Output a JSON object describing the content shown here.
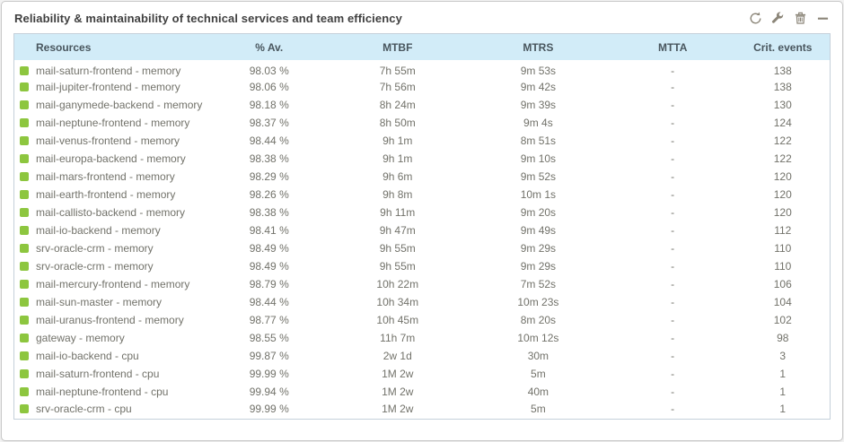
{
  "widget": {
    "title": "Reliability & maintainability of technical services and team efficiency",
    "toolbar": {
      "refresh_icon": "refresh-icon",
      "settings_icon": "wrench-icon",
      "delete_icon": "trash-icon",
      "collapse_icon": "minimize-icon"
    }
  },
  "colors": {
    "status_ok": "#8dc63f",
    "header_bg": "#d2ecf8",
    "header_text": "#49565e",
    "row_text": "#72726a",
    "table_border": "#c5d0da",
    "icon_gray": "#8b8578"
  },
  "table": {
    "columns": [
      "Resources",
      "% Av.",
      "MTBF",
      "MTRS",
      "MTTA",
      "Crit. events"
    ],
    "rows": [
      {
        "status": "ok",
        "resource": "mail-saturn-frontend - memory",
        "availability": "98.03 %",
        "mtbf": "7h 55m",
        "mtrs": "9m 53s",
        "mtta": "-",
        "crit_events": "138"
      },
      {
        "status": "ok",
        "resource": "mail-jupiter-frontend - memory",
        "availability": "98.06 %",
        "mtbf": "7h 56m",
        "mtrs": "9m 42s",
        "mtta": "-",
        "crit_events": "138"
      },
      {
        "status": "ok",
        "resource": "mail-ganymede-backend - memory",
        "availability": "98.18 %",
        "mtbf": "8h 24m",
        "mtrs": "9m 39s",
        "mtta": "-",
        "crit_events": "130"
      },
      {
        "status": "ok",
        "resource": "mail-neptune-frontend - memory",
        "availability": "98.37 %",
        "mtbf": "8h 50m",
        "mtrs": "9m 4s",
        "mtta": "-",
        "crit_events": "124"
      },
      {
        "status": "ok",
        "resource": "mail-venus-frontend - memory",
        "availability": "98.44 %",
        "mtbf": "9h 1m",
        "mtrs": "8m 51s",
        "mtta": "-",
        "crit_events": "122"
      },
      {
        "status": "ok",
        "resource": "mail-europa-backend - memory",
        "availability": "98.38 %",
        "mtbf": "9h 1m",
        "mtrs": "9m 10s",
        "mtta": "-",
        "crit_events": "122"
      },
      {
        "status": "ok",
        "resource": "mail-mars-frontend - memory",
        "availability": "98.29 %",
        "mtbf": "9h 6m",
        "mtrs": "9m 52s",
        "mtta": "-",
        "crit_events": "120"
      },
      {
        "status": "ok",
        "resource": "mail-earth-frontend - memory",
        "availability": "98.26 %",
        "mtbf": "9h 8m",
        "mtrs": "10m 1s",
        "mtta": "-",
        "crit_events": "120"
      },
      {
        "status": "ok",
        "resource": "mail-callisto-backend - memory",
        "availability": "98.38 %",
        "mtbf": "9h 11m",
        "mtrs": "9m 20s",
        "mtta": "-",
        "crit_events": "120"
      },
      {
        "status": "ok",
        "resource": "mail-io-backend - memory",
        "availability": "98.41 %",
        "mtbf": "9h 47m",
        "mtrs": "9m 49s",
        "mtta": "-",
        "crit_events": "112"
      },
      {
        "status": "ok",
        "resource": "srv-oracle-crm - memory",
        "availability": "98.49 %",
        "mtbf": "9h 55m",
        "mtrs": "9m 29s",
        "mtta": "-",
        "crit_events": "110"
      },
      {
        "status": "ok",
        "resource": "srv-oracle-crm - memory",
        "availability": "98.49 %",
        "mtbf": "9h 55m",
        "mtrs": "9m 29s",
        "mtta": "-",
        "crit_events": "110"
      },
      {
        "status": "ok",
        "resource": "mail-mercury-frontend - memory",
        "availability": "98.79 %",
        "mtbf": "10h 22m",
        "mtrs": "7m 52s",
        "mtta": "-",
        "crit_events": "106"
      },
      {
        "status": "ok",
        "resource": "mail-sun-master - memory",
        "availability": "98.44 %",
        "mtbf": "10h 34m",
        "mtrs": "10m 23s",
        "mtta": "-",
        "crit_events": "104"
      },
      {
        "status": "ok",
        "resource": "mail-uranus-frontend - memory",
        "availability": "98.77 %",
        "mtbf": "10h 45m",
        "mtrs": "8m 20s",
        "mtta": "-",
        "crit_events": "102"
      },
      {
        "status": "ok",
        "resource": "gateway - memory",
        "availability": "98.55 %",
        "mtbf": "11h 7m",
        "mtrs": "10m 12s",
        "mtta": "-",
        "crit_events": "98"
      },
      {
        "status": "ok",
        "resource": "mail-io-backend - cpu",
        "availability": "99.87 %",
        "mtbf": "2w 1d",
        "mtrs": "30m",
        "mtta": "-",
        "crit_events": "3"
      },
      {
        "status": "ok",
        "resource": "mail-saturn-frontend - cpu",
        "availability": "99.99 %",
        "mtbf": "1M 2w",
        "mtrs": "5m",
        "mtta": "-",
        "crit_events": "1"
      },
      {
        "status": "ok",
        "resource": "mail-neptune-frontend - cpu",
        "availability": "99.94 %",
        "mtbf": "1M 2w",
        "mtrs": "40m",
        "mtta": "-",
        "crit_events": "1"
      },
      {
        "status": "ok",
        "resource": "srv-oracle-crm - cpu",
        "availability": "99.99 %",
        "mtbf": "1M 2w",
        "mtrs": "5m",
        "mtta": "-",
        "crit_events": "1"
      }
    ]
  }
}
